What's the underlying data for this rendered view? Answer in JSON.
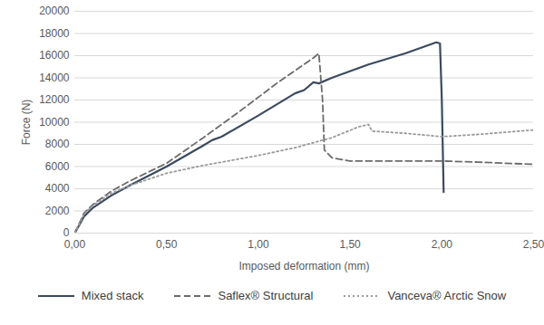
{
  "chart_data": {
    "type": "line",
    "x_label": "Imposed deformation (mm)",
    "y_label": "Force (N)",
    "xlim": [
      0,
      2.5
    ],
    "ylim": [
      0,
      20000
    ],
    "xticks": [
      {
        "value": 0,
        "label": "0,00"
      },
      {
        "value": 0.5,
        "label": "0,50"
      },
      {
        "value": 1,
        "label": "1,00"
      },
      {
        "value": 1.5,
        "label": "1,50"
      },
      {
        "value": 2,
        "label": "2,00"
      },
      {
        "value": 2.5,
        "label": "2,50"
      }
    ],
    "yticks": [
      0,
      2000,
      4000,
      6000,
      8000,
      10000,
      12000,
      14000,
      16000,
      18000,
      20000
    ],
    "grid": true,
    "legend": "bottom",
    "series": [
      {
        "name": "Mixed stack",
        "color": "#3b4a5e",
        "line_style": "solid",
        "x": [
          0,
          0.05,
          0.1,
          0.2,
          0.3,
          0.5,
          0.7,
          0.75,
          0.8,
          1.0,
          1.2,
          1.25,
          1.3,
          1.33,
          1.4,
          1.6,
          1.8,
          1.97,
          1.99,
          2.0,
          2.01
        ],
        "values": [
          0,
          1500,
          2300,
          3400,
          4300,
          6000,
          7900,
          8400,
          8700,
          10600,
          12600,
          12900,
          13600,
          13500,
          14000,
          15200,
          16200,
          17200,
          17100,
          12000,
          3700
        ]
      },
      {
        "name": "Saflex® Structural",
        "color": "#6b6b6b",
        "line_style": "dashed",
        "x": [
          0,
          0.05,
          0.1,
          0.2,
          0.3,
          0.5,
          0.7,
          0.9,
          1.1,
          1.3,
          1.33,
          1.35,
          1.36,
          1.4,
          1.5,
          2.0,
          2.2,
          2.5
        ],
        "values": [
          0,
          1800,
          2600,
          3800,
          4700,
          6300,
          8600,
          11000,
          13500,
          15800,
          16200,
          12000,
          7500,
          6800,
          6500,
          6500,
          6400,
          6200
        ]
      },
      {
        "name": "Vanceva® Arctic Snow",
        "color": "#9a9a9a",
        "line_style": "dotted",
        "x": [
          0,
          0.05,
          0.1,
          0.2,
          0.3,
          0.5,
          0.7,
          1.0,
          1.2,
          1.4,
          1.55,
          1.6,
          1.62,
          1.8,
          2.0,
          2.2,
          2.5
        ],
        "values": [
          0,
          1700,
          2500,
          3600,
          4300,
          5400,
          6100,
          7000,
          7700,
          8600,
          9600,
          9800,
          9200,
          9000,
          8700,
          8900,
          9300
        ]
      }
    ]
  }
}
